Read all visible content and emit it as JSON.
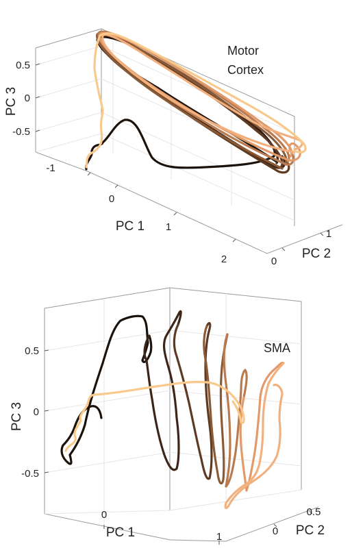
{
  "chart_data": [
    {
      "type": "line",
      "subtype": "3d-trajectory",
      "annotation": "Motor\nCortex",
      "xlabel": "PC 1",
      "ylabel": "PC 2",
      "zlabel": "PC 3",
      "xticks": [
        "-1",
        "0",
        "1",
        "2"
      ],
      "yticks": [
        "0",
        "1"
      ],
      "zticks": [
        "0.5",
        "0",
        "-0.5"
      ],
      "xlim": [
        -1.2,
        2.6
      ],
      "ylim": [
        -0.7,
        1.3
      ],
      "zlim": [
        -0.75,
        0.75
      ],
      "grid": true,
      "colors": [
        "#1b120c",
        "#3d2517",
        "#5e3a22",
        "#8a5a36",
        "#b87a4f",
        "#e29a6a",
        "#f2b07e",
        "#f9c98c"
      ]
    },
    {
      "type": "line",
      "subtype": "3d-trajectory",
      "annotation": "SMA",
      "xlabel": "PC 1",
      "ylabel": "PC 2",
      "zlabel": "PC 3",
      "xticks": [
        "0",
        "1"
      ],
      "yticks": [
        "0",
        "0.5"
      ],
      "zticks": [
        "0.5",
        "0",
        "-0.5"
      ],
      "xlim": [
        -0.5,
        1.1
      ],
      "ylim": [
        -0.3,
        0.75
      ],
      "zlim": [
        -0.75,
        0.8
      ],
      "grid": true,
      "colors": [
        "#1b120c",
        "#3d2517",
        "#5e3a22",
        "#8a5a36",
        "#b87a4f",
        "#e29a6a",
        "#f2b07e",
        "#f9c98c"
      ]
    }
  ]
}
